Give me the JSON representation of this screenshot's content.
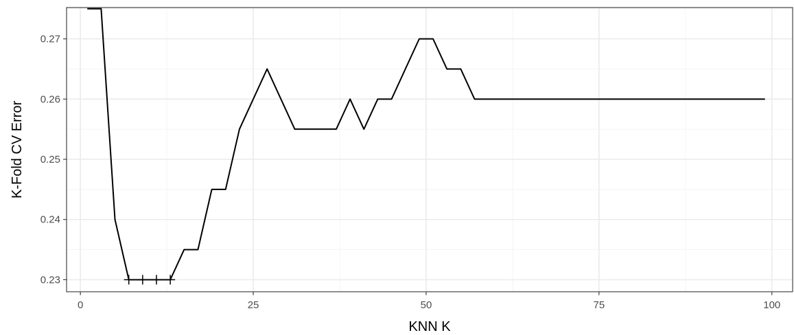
{
  "chart_data": {
    "type": "line",
    "title": "",
    "xlabel": "KNN K",
    "ylabel": "K-Fold CV Error",
    "xlim": [
      -2,
      103
    ],
    "ylim": [
      0.228,
      0.2752
    ],
    "x_ticks": [
      0,
      25,
      50,
      75,
      100
    ],
    "x_tick_labels": [
      "0",
      "25",
      "50",
      "75",
      "100"
    ],
    "y_ticks": [
      0.23,
      0.24,
      0.25,
      0.26,
      0.27
    ],
    "y_tick_labels": [
      "0.23",
      "0.24",
      "0.25",
      "0.26",
      "0.27"
    ],
    "grid": true,
    "legend": "none",
    "series": [
      {
        "x": [
          1,
          3,
          5,
          7,
          9,
          11,
          13,
          15,
          17,
          19,
          21,
          23,
          25,
          27,
          29,
          31,
          33,
          35,
          37,
          39,
          41,
          43,
          45,
          47,
          49,
          51,
          53,
          55,
          57,
          59,
          61,
          63,
          65,
          67,
          69,
          71,
          73,
          75,
          77,
          79,
          81,
          83,
          85,
          87,
          89,
          91,
          93,
          95,
          97,
          99
        ],
        "y": [
          0.275,
          0.275,
          0.24,
          0.23,
          0.23,
          0.23,
          0.23,
          0.235,
          0.235,
          0.245,
          0.245,
          0.255,
          0.26,
          0.265,
          0.26,
          0.255,
          0.255,
          0.255,
          0.255,
          0.26,
          0.255,
          0.26,
          0.26,
          0.265,
          0.27,
          0.27,
          0.265,
          0.265,
          0.26,
          0.26,
          0.26,
          0.26,
          0.26,
          0.26,
          0.26,
          0.26,
          0.26,
          0.26,
          0.26,
          0.26,
          0.26,
          0.26,
          0.26,
          0.26,
          0.26,
          0.26,
          0.26,
          0.26,
          0.26,
          0.26
        ]
      }
    ],
    "marked_points": {
      "x": [
        7,
        9,
        11,
        13
      ],
      "y": [
        0.23,
        0.23,
        0.23,
        0.23
      ]
    },
    "colors": {
      "line": "#000000",
      "grid_major": "#ebebeb",
      "grid_minor": "#f3f3f3",
      "panel_border": "#333333",
      "tick_label": "#4d4d4d"
    }
  }
}
